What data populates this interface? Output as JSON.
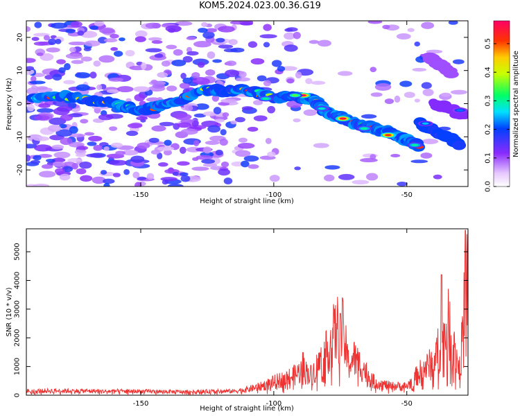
{
  "figure_title": "KOM5.2024.023.00.36.G19",
  "chart_data": [
    {
      "type": "heatmap",
      "title": "",
      "xlabel": "Height of straight line (km)",
      "ylabel": "Frequency (Hz)",
      "xlim": [
        -193,
        -27
      ],
      "ylim": [
        -25,
        25
      ],
      "xticks": [
        -150,
        -100,
        -50
      ],
      "yticks": [
        -20,
        -10,
        0,
        10,
        20
      ],
      "grid": false,
      "colorbar": {
        "label": "Normalized spectral amplitude",
        "range": [
          0,
          0.58
        ],
        "ticks": [
          0.0,
          0.1,
          0.2,
          0.3,
          0.4,
          0.5
        ]
      },
      "ridges": [
        {
          "x": [
            -190,
            -175,
            -160,
            -150,
            -140,
            -125,
            -120,
            -110,
            -100,
            -90,
            -85,
            -80,
            -75,
            -70,
            -65,
            -60,
            -55,
            -50,
            -45
          ],
          "y": [
            2,
            2,
            0,
            -2,
            0,
            4,
            4,
            4,
            2,
            2,
            1,
            -3,
            -4,
            -6,
            -7,
            -8,
            -9,
            -11,
            -13
          ],
          "peak": 0.55
        },
        {
          "x": [
            -45,
            -40,
            -35,
            -30
          ],
          "y": [
            -6,
            -8,
            -10,
            -12
          ],
          "peak": 0.2
        },
        {
          "x": [
            -42,
            -38,
            -33
          ],
          "y": [
            14,
            12,
            9
          ],
          "peak": 0.1
        },
        {
          "x": [
            -40,
            -35,
            -28
          ],
          "y": [
            0,
            -1,
            -4
          ],
          "peak": 0.12
        }
      ],
      "hotspots": [
        {
          "x": -89,
          "y": 2.5,
          "value": 0.56
        },
        {
          "x": -74,
          "y": -4.5,
          "value": 0.55
        },
        {
          "x": -57,
          "y": -9.5,
          "value": 0.52
        },
        {
          "x": -92,
          "y": 2.5,
          "value": 0.35
        },
        {
          "x": -103,
          "y": 1.5,
          "value": 0.3
        },
        {
          "x": -82,
          "y": -1.5,
          "value": 0.28
        },
        {
          "x": -66,
          "y": -7.5,
          "value": 0.3
        },
        {
          "x": -47,
          "y": -12.5,
          "value": 0.3
        },
        {
          "x": -43,
          "y": -6,
          "value": 0.25
        },
        {
          "x": -30,
          "y": -2,
          "value": 0.22
        }
      ]
    },
    {
      "type": "line",
      "title": "",
      "xlabel": "Height of straight line (km)",
      "ylabel": "SNR (10 * v/v)",
      "xlim": [
        -193,
        -27
      ],
      "ylim": [
        0,
        5800
      ],
      "xticks": [
        -150,
        -100,
        -50
      ],
      "yticks": [
        0,
        1000,
        2000,
        3000,
        4000,
        5000
      ],
      "grid": false,
      "series": [
        {
          "color": "#ee3333",
          "x": [
            -193,
            -185,
            -175,
            -165,
            -155,
            -145,
            -135,
            -125,
            -115,
            -110,
            -105,
            -100,
            -95,
            -92,
            -89,
            -86,
            -83,
            -80,
            -78,
            -76,
            -74,
            -72,
            -70,
            -68,
            -66,
            -64,
            -62,
            -60,
            -58,
            -56,
            -54,
            -52,
            -50,
            -48,
            -46,
            -44,
            -42,
            -40,
            -38,
            -36,
            -34,
            -32,
            -30,
            -28,
            -27
          ],
          "values": [
            140,
            150,
            150,
            140,
            140,
            130,
            120,
            130,
            140,
            200,
            300,
            450,
            600,
            700,
            900,
            700,
            1100,
            1500,
            2000,
            2300,
            2200,
            1100,
            1300,
            1100,
            900,
            600,
            450,
            400,
            350,
            300,
            320,
            300,
            300,
            500,
            700,
            900,
            1000,
            1200,
            1600,
            2000,
            2500,
            1500,
            900,
            3500,
            4000
          ]
        }
      ],
      "peaks": [
        {
          "x": -75,
          "y": 2850
        },
        {
          "x": -89,
          "y": 1500
        },
        {
          "x": -37,
          "y": 4200
        },
        {
          "x": -28,
          "y": 5750
        }
      ]
    }
  ]
}
